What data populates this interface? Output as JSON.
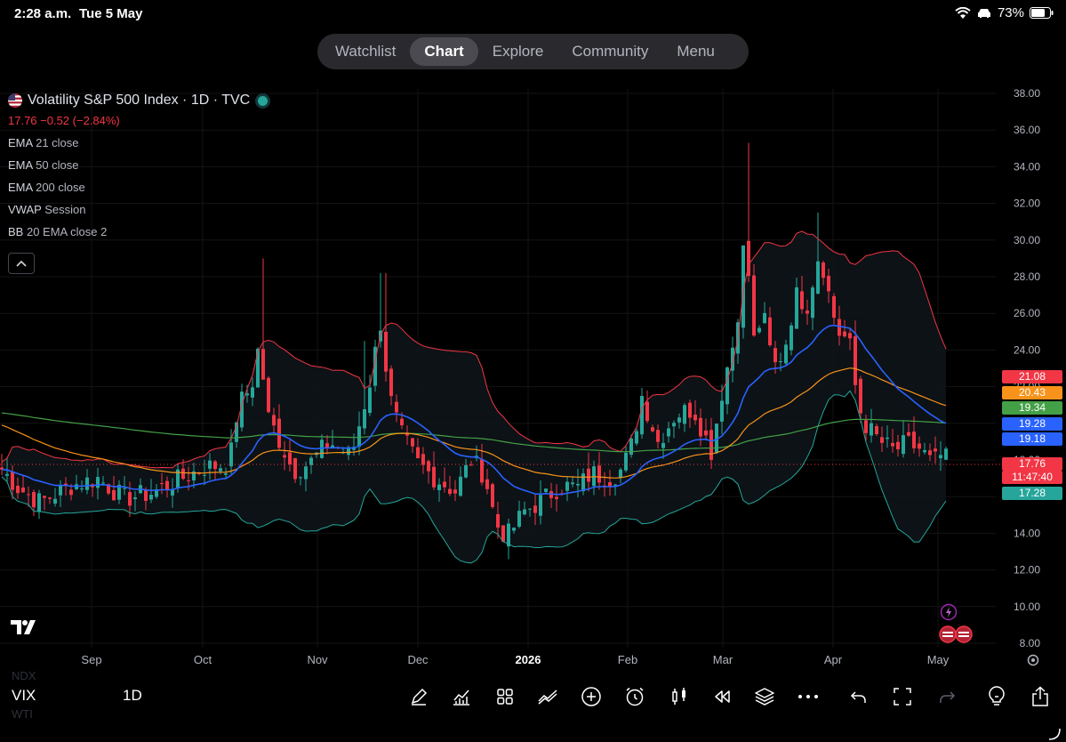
{
  "status": {
    "time": "2:28 a.m.",
    "date": "Tue 5 May",
    "battery": "73%"
  },
  "nav": {
    "tabs": [
      "Watchlist",
      "Chart",
      "Explore",
      "Community",
      "Menu"
    ],
    "active": 1
  },
  "legend": {
    "title": "Volatility S&P 500 Index · 1D · TVC",
    "quote": "17.76 −0.52 (−2.84%)",
    "indicators": [
      {
        "name": "EMA",
        "params": "21 close"
      },
      {
        "name": "EMA",
        "params": "50 close"
      },
      {
        "name": "EMA",
        "params": "200 close"
      },
      {
        "name": "VWAP",
        "params": "Session"
      },
      {
        "name": "BB",
        "params": "20 EMA close 2"
      }
    ]
  },
  "price_tags": [
    {
      "value": "21.08",
      "color": "#f23645"
    },
    {
      "value": "20.43",
      "color": "#f7931a"
    },
    {
      "value": "19.34",
      "color": "#43a047"
    },
    {
      "value": "19.28",
      "color": "#2962ff"
    },
    {
      "value": "19.18",
      "color": "#2962ff"
    },
    {
      "value": "17.76",
      "color": "#f23645"
    },
    {
      "value": "11:47:40",
      "color": "#f23645"
    },
    {
      "value": "17.28",
      "color": "#26a69a"
    }
  ],
  "chart_data": {
    "type": "candlestick",
    "yaxis": {
      "ticks": [
        "38.00",
        "36.00",
        "34.00",
        "32.00",
        "30.00",
        "28.00",
        "26.00",
        "24.00",
        "22.00",
        "20.00",
        "18.00",
        "16.00",
        "14.00",
        "12.00",
        "10.00",
        "8.00"
      ],
      "range": [
        8,
        38
      ]
    },
    "xaxis": {
      "ticks": [
        "Sep",
        "Oct",
        "Nov",
        "Dec",
        "2026",
        "Feb",
        "Mar",
        "Apr",
        "May"
      ]
    },
    "last_price": 17.76,
    "series_colors": {
      "up": "#26a69a",
      "down": "#f23645",
      "ema21": "#2962ff",
      "ema50": "#f7931a",
      "ema200": "#43a047",
      "bb_upper": "#f23645",
      "bb_lower": "#26a69a"
    },
    "key_points": [
      {
        "date": "Aug",
        "close": 16.0
      },
      {
        "date": "mid-Oct",
        "high": 29.0,
        "close": 21.0
      },
      {
        "date": "Nov",
        "high": 28.0,
        "close": 20.0
      },
      {
        "date": "late-Dec",
        "close": 13.5
      },
      {
        "date": "early-Mar",
        "high": 35.3,
        "close": 24.0
      },
      {
        "date": "late-Mar",
        "high": 31.5,
        "close": 27.0
      },
      {
        "date": "May",
        "close": 17.76
      }
    ]
  },
  "bottom": {
    "ghost_top": "NDX",
    "symbol": "VIX",
    "ghost_bottom": "WTI",
    "interval": "1D",
    "tools": [
      "draw-icon",
      "indicators-icon",
      "templates-icon",
      "compare-icon",
      "add-icon",
      "alert-icon",
      "chart-type-icon",
      "replay-icon",
      "layers-icon",
      "more-icon",
      "undo-icon",
      "fullscreen-icon",
      "redo-icon",
      "ideas-icon",
      "share-icon"
    ]
  }
}
